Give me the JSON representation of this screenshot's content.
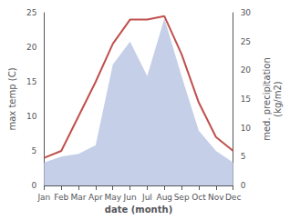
{
  "chart_data": {
    "type": "line",
    "categories": [
      "Jan",
      "Feb",
      "Mar",
      "Apr",
      "May",
      "Jun",
      "Jul",
      "Aug",
      "Sep",
      "Oct",
      "Nov",
      "Dec"
    ],
    "series": [
      {
        "type": "area",
        "color": "#c5cfe8",
        "axis": "y2",
        "values": [
          4,
          5,
          5.5,
          7,
          21,
          25,
          19,
          29,
          19,
          9.5,
          6,
          4
        ]
      },
      {
        "type": "line",
        "color": "#c0504d",
        "values": [
          4,
          5,
          10,
          15,
          20.5,
          24,
          24,
          24.5,
          19,
          12,
          7,
          5
        ]
      }
    ],
    "xlabel": "date (month)",
    "ylabel": "max temp (C)",
    "y2label": "med. precipitation\n(kg/m2)",
    "ylim": [
      0,
      25
    ],
    "yticks": [
      0,
      5,
      10,
      15,
      20,
      25
    ],
    "y2lim": [
      0,
      30
    ],
    "y2ticks": [
      0,
      5,
      10,
      15,
      20,
      25,
      30
    ],
    "grid": false
  }
}
